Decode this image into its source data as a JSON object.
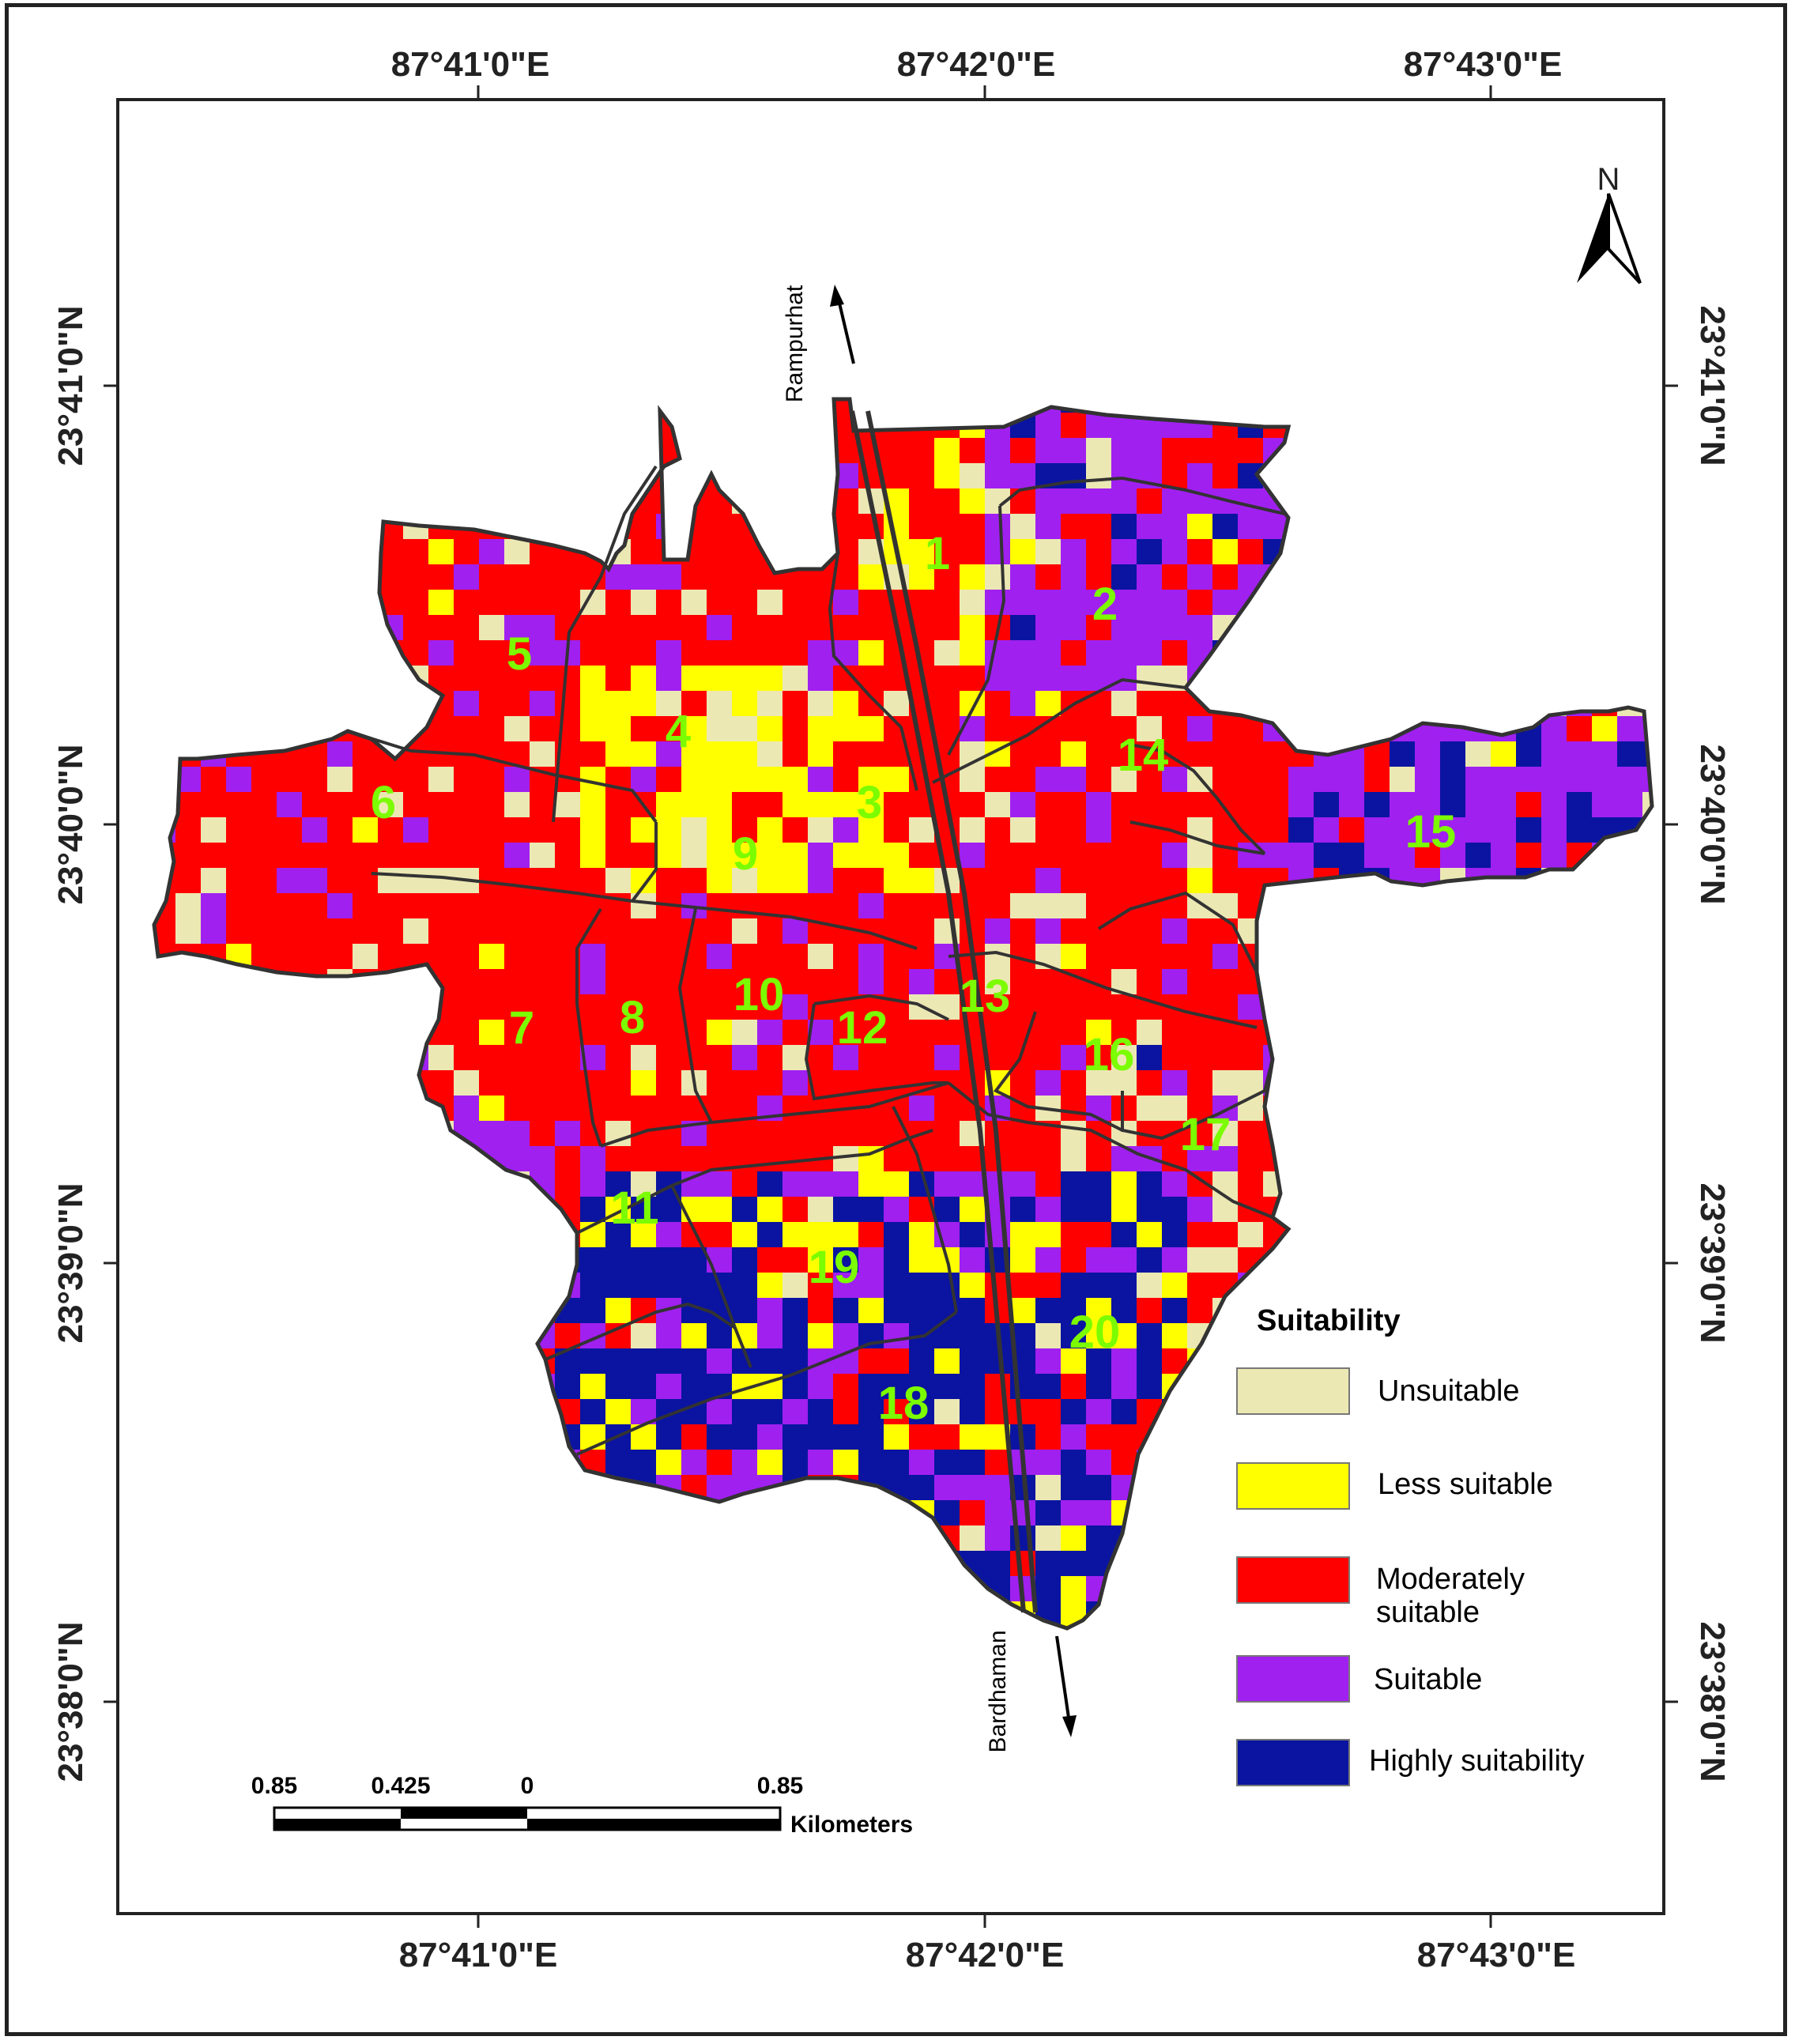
{
  "coordinates": {
    "top": [
      "87°41'0\"E",
      "87°42'0\"E",
      "87°43'0\"E"
    ],
    "bottom": [
      "87°41'0\"E",
      "87°42'0\"E",
      "87°43'0\"E"
    ],
    "left": [
      "23°41'0\"N",
      "23°40'0\"N",
      "23°39'0\"N",
      "23°38'0\"N"
    ],
    "right": [
      "23°41'0\"N",
      "23°40'0\"N",
      "23°39'0\"N",
      "23°38'0\"N"
    ]
  },
  "north_arrow": {
    "label": "N"
  },
  "roads": {
    "north": "Rampurhat",
    "south": "Bardhaman"
  },
  "wards": [
    "1",
    "2",
    "3",
    "4",
    "5",
    "6",
    "7",
    "8",
    "9",
    "10",
    "11",
    "12",
    "13",
    "14",
    "15",
    "16",
    "17",
    "18",
    "19",
    "20"
  ],
  "legend": {
    "title": "Suitability",
    "items": [
      {
        "label": "Unsuitable",
        "color": "#ECE8B4"
      },
      {
        "label": "Less suitable",
        "color": "#FFFF00"
      },
      {
        "label": "Moderately",
        "label2": "suitable",
        "color": "#FF0000"
      },
      {
        "label": "Suitable",
        "color": "#A020F0"
      },
      {
        "label": "Highly suitability",
        "color": "#0A14A0"
      }
    ]
  },
  "scale_bar": {
    "ticks": [
      "0.85",
      "0.425",
      "0",
      "0.85"
    ],
    "unit": "Kilometers"
  }
}
